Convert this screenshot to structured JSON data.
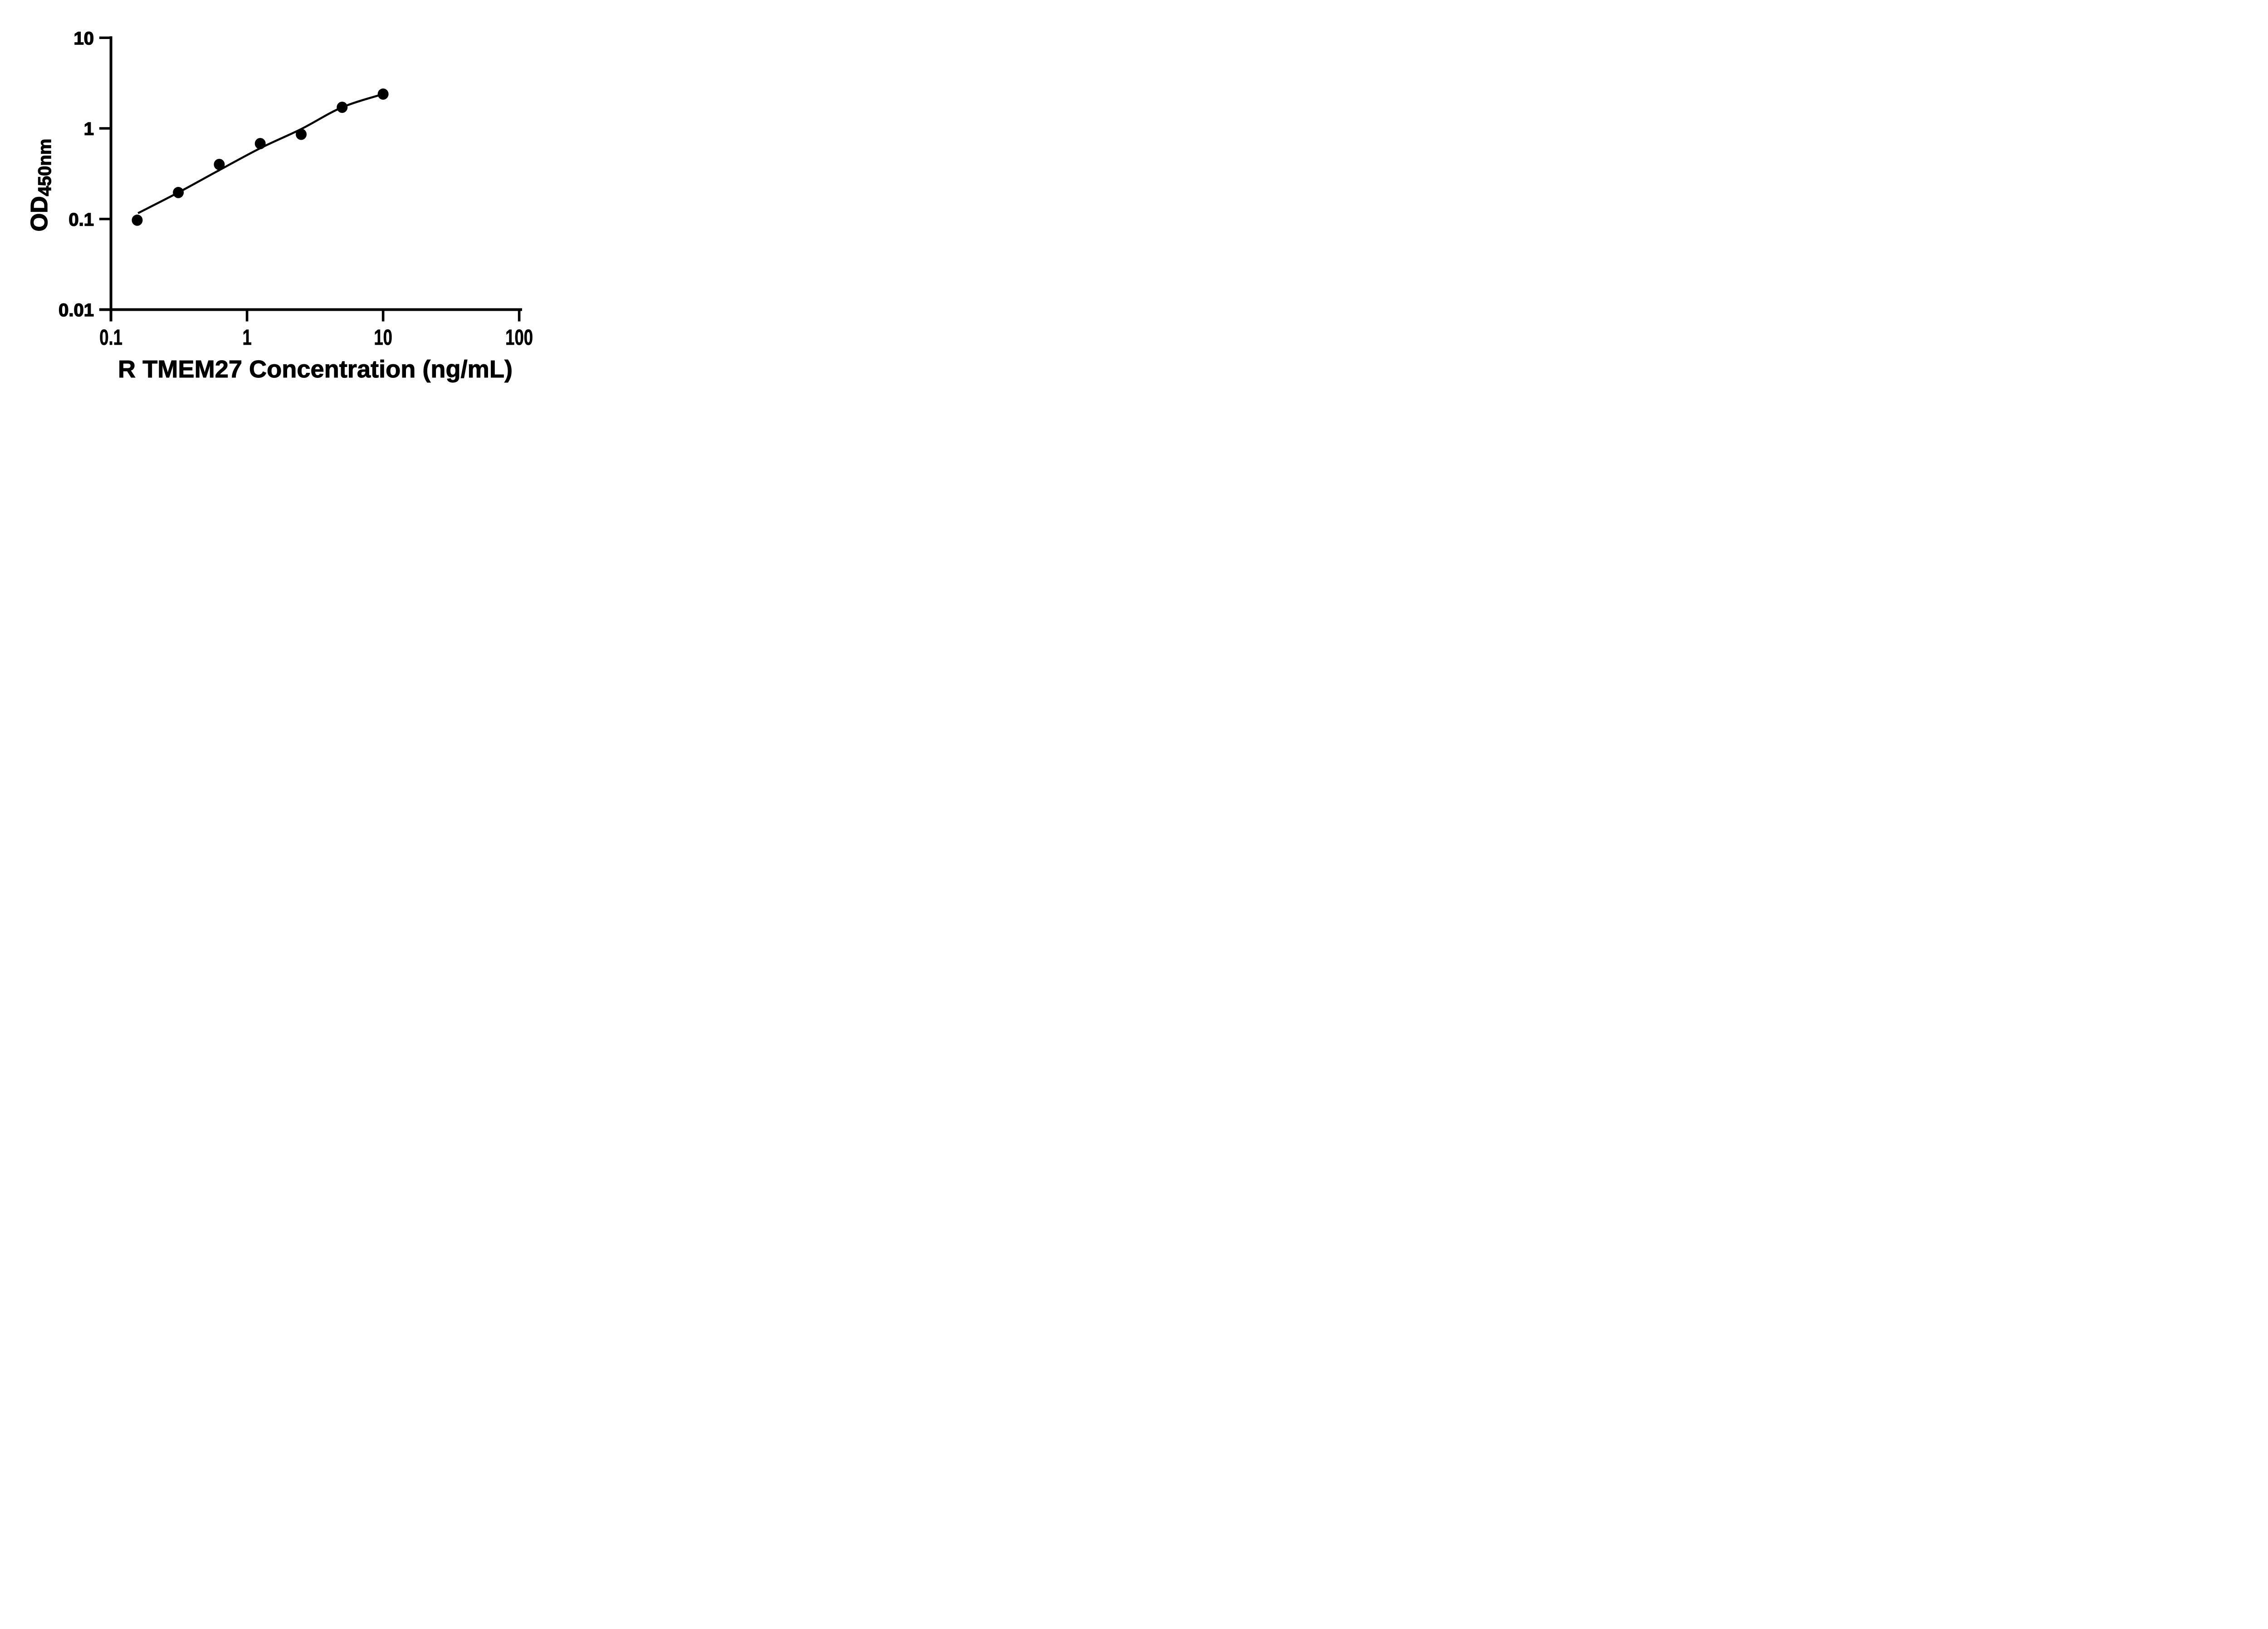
{
  "figure": {
    "background_color": "#ffffff",
    "ink_color": "#000000"
  },
  "chart_data": {
    "type": "scatter",
    "title": "",
    "xlabel": "R TMEM27 Concentration (ng/mL)",
    "ylabel": "OD",
    "ylabel_subscript": "450nm",
    "x_scale": "log",
    "y_scale": "log",
    "xlim": [
      0.1,
      100
    ],
    "ylim": [
      0.01,
      10
    ],
    "x_ticks": [
      {
        "value": 0.1,
        "label": "0.1"
      },
      {
        "value": 1,
        "label": "1"
      },
      {
        "value": 10,
        "label": "10"
      },
      {
        "value": 100,
        "label": "100"
      }
    ],
    "y_ticks": [
      {
        "value": 10,
        "label": "10"
      },
      {
        "value": 1,
        "label": "1"
      },
      {
        "value": 0.1,
        "label": "0.1"
      },
      {
        "value": 0.01,
        "label": "0.01"
      }
    ],
    "grid": false,
    "legend": false,
    "marker": "filled-circle",
    "marker_color": "#000000",
    "line_color": "#000000",
    "points": [
      {
        "x": 0.156,
        "y": 0.097
      },
      {
        "x": 0.3125,
        "y": 0.196
      },
      {
        "x": 0.625,
        "y": 0.4
      },
      {
        "x": 1.25,
        "y": 0.68
      },
      {
        "x": 2.5,
        "y": 0.86
      },
      {
        "x": 5,
        "y": 1.71
      },
      {
        "x": 10,
        "y": 2.39
      }
    ],
    "trend_line": [
      {
        "x": 0.158,
        "y": 0.116
      },
      {
        "x": 0.3125,
        "y": 0.196
      },
      {
        "x": 0.625,
        "y": 0.346
      },
      {
        "x": 1.25,
        "y": 0.604
      },
      {
        "x": 2.5,
        "y": 0.983
      },
      {
        "x": 5,
        "y": 1.71
      },
      {
        "x": 10,
        "y": 2.39
      }
    ]
  }
}
